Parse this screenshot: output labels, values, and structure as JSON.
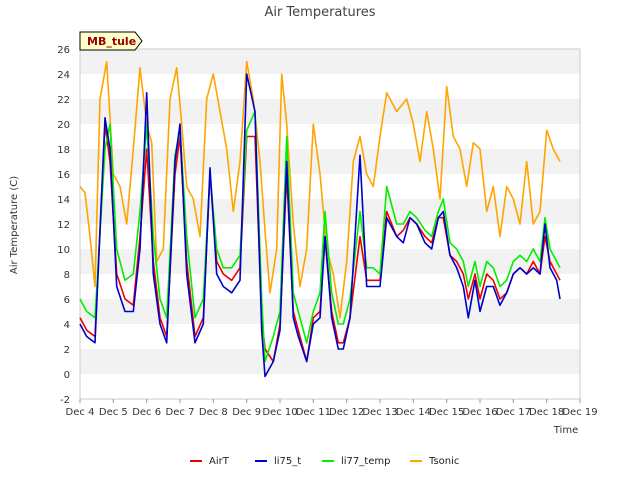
{
  "chart_data": {
    "type": "line",
    "title": "Air Temperatures",
    "xlabel": "Time",
    "ylabel": "Air Temperature (C)",
    "site_tag": "MB_tule",
    "xlim": [
      4,
      19
    ],
    "ylim": [
      -2,
      26
    ],
    "x_ticks": [
      {
        "value": 4,
        "label": "Dec 4"
      },
      {
        "value": 5,
        "label": "Dec 5"
      },
      {
        "value": 6,
        "label": "Dec 6"
      },
      {
        "value": 7,
        "label": "Dec 7"
      },
      {
        "value": 8,
        "label": "Dec 8"
      },
      {
        "value": 9,
        "label": "Dec 9"
      },
      {
        "value": 10,
        "label": "Dec 10"
      },
      {
        "value": 11,
        "label": "Dec 11"
      },
      {
        "value": 12,
        "label": "Dec 12"
      },
      {
        "value": 13,
        "label": "Dec 13"
      },
      {
        "value": 14,
        "label": "Dec 14"
      },
      {
        "value": 15,
        "label": "Dec 15"
      },
      {
        "value": 16,
        "label": "Dec 16"
      },
      {
        "value": 17,
        "label": "Dec 17"
      },
      {
        "value": 18,
        "label": "Dec 18"
      },
      {
        "value": 19,
        "label": "Dec 19"
      }
    ],
    "y_ticks": [
      -2,
      0,
      2,
      4,
      6,
      8,
      10,
      12,
      14,
      16,
      18,
      20,
      22,
      24,
      26
    ],
    "grid": "horizontal bands",
    "legend_position": "bottom",
    "x_unit": "day of December",
    "series": [
      {
        "name": "AirT",
        "color": "#ee0000",
        "x": [
          4.0,
          4.2,
          4.45,
          4.75,
          4.9,
          5.1,
          5.35,
          5.6,
          5.8,
          6.0,
          6.2,
          6.4,
          6.6,
          6.85,
          7.0,
          7.2,
          7.45,
          7.7,
          7.9,
          8.1,
          8.3,
          8.55,
          8.8,
          9.0,
          9.25,
          9.45,
          9.55,
          9.8,
          10.0,
          10.2,
          10.4,
          10.55,
          10.8,
          11.0,
          11.2,
          11.35,
          11.55,
          11.75,
          11.9,
          12.1,
          12.4,
          12.6,
          12.8,
          13.0,
          13.2,
          13.5,
          13.7,
          13.9,
          14.1,
          14.35,
          14.55,
          14.75,
          14.9,
          15.1,
          15.3,
          15.5,
          15.65,
          15.85,
          16.0,
          16.2,
          16.4,
          16.6,
          16.8,
          17.0,
          17.2,
          17.4,
          17.6,
          17.8,
          17.95,
          18.1,
          18.3,
          18.4
        ],
        "values": [
          4.5,
          3.5,
          3.0,
          20.0,
          17.0,
          8.0,
          6.0,
          5.5,
          11.0,
          18.0,
          9.0,
          4.5,
          3.0,
          16.0,
          19.0,
          9.0,
          3.0,
          4.5,
          16.0,
          9.0,
          8.0,
          7.5,
          8.5,
          19.0,
          19.0,
          4.5,
          2.0,
          1.0,
          4.0,
          16.0,
          5.0,
          3.5,
          1.0,
          4.5,
          5.0,
          11.0,
          5.0,
          2.5,
          2.5,
          4.5,
          11.0,
          7.5,
          7.5,
          7.5,
          13.0,
          11.0,
          11.5,
          12.5,
          12.0,
          11.0,
          10.5,
          12.5,
          12.5,
          9.5,
          9.0,
          8.0,
          6.0,
          8.0,
          6.0,
          8.0,
          7.5,
          6.0,
          6.5,
          8.0,
          8.5,
          8.0,
          9.0,
          8.0,
          11.0,
          9.0,
          8.0,
          7.5
        ]
      },
      {
        "name": "li75_t",
        "color": "#0000cc",
        "x": [
          4.0,
          4.2,
          4.45,
          4.75,
          4.9,
          5.1,
          5.35,
          5.6,
          5.8,
          6.0,
          6.2,
          6.4,
          6.6,
          6.85,
          7.0,
          7.2,
          7.45,
          7.7,
          7.9,
          8.1,
          8.3,
          8.55,
          8.8,
          9.0,
          9.25,
          9.45,
          9.55,
          9.8,
          10.0,
          10.2,
          10.4,
          10.55,
          10.8,
          11.0,
          11.2,
          11.35,
          11.55,
          11.75,
          11.9,
          12.1,
          12.4,
          12.6,
          12.8,
          13.0,
          13.2,
          13.5,
          13.7,
          13.9,
          14.1,
          14.35,
          14.55,
          14.75,
          14.9,
          15.1,
          15.3,
          15.5,
          15.65,
          15.85,
          16.0,
          16.2,
          16.4,
          16.6,
          16.8,
          17.0,
          17.2,
          17.4,
          17.6,
          17.8,
          17.95,
          18.1,
          18.3,
          18.4
        ],
        "values": [
          4.0,
          3.0,
          2.5,
          20.5,
          18.0,
          7.0,
          5.0,
          5.0,
          10.0,
          22.5,
          8.0,
          4.0,
          2.5,
          17.0,
          20.0,
          8.0,
          2.5,
          4.0,
          16.5,
          8.0,
          7.0,
          6.5,
          7.5,
          24.0,
          21.0,
          3.5,
          -0.2,
          1.0,
          3.5,
          17.0,
          4.5,
          3.0,
          1.0,
          4.0,
          4.5,
          11.0,
          4.5,
          2.0,
          2.0,
          4.5,
          17.5,
          7.0,
          7.0,
          7.0,
          12.5,
          11.0,
          10.5,
          12.5,
          12.0,
          10.5,
          10.0,
          12.5,
          13.0,
          9.5,
          8.5,
          7.0,
          4.5,
          7.5,
          5.0,
          7.0,
          7.0,
          5.5,
          6.5,
          8.0,
          8.5,
          8.0,
          8.5,
          8.0,
          12.0,
          8.5,
          7.5,
          6.0
        ]
      },
      {
        "name": "li77_temp",
        "color": "#00ee00",
        "x": [
          4.0,
          4.2,
          4.45,
          4.75,
          4.9,
          5.1,
          5.35,
          5.6,
          5.8,
          6.0,
          6.2,
          6.4,
          6.6,
          6.85,
          7.0,
          7.2,
          7.45,
          7.7,
          7.9,
          8.1,
          8.3,
          8.55,
          8.8,
          9.0,
          9.25,
          9.45,
          9.55,
          9.8,
          10.0,
          10.2,
          10.4,
          10.55,
          10.8,
          11.0,
          11.2,
          11.35,
          11.55,
          11.75,
          11.9,
          12.1,
          12.4,
          12.6,
          12.8,
          13.0,
          13.2,
          13.5,
          13.7,
          13.9,
          14.1,
          14.35,
          14.55,
          14.75,
          14.9,
          15.1,
          15.3,
          15.5,
          15.65,
          15.85,
          16.0,
          16.2,
          16.4,
          16.6,
          16.8,
          17.0,
          17.2,
          17.4,
          17.6,
          17.8,
          17.95,
          18.1,
          18.3,
          18.4
        ],
        "values": [
          6.0,
          5.0,
          4.5,
          18.0,
          20.0,
          10.0,
          7.5,
          8.0,
          13.0,
          20.0,
          11.0,
          6.0,
          4.5,
          17.5,
          19.5,
          11.0,
          4.5,
          6.0,
          16.0,
          10.0,
          8.5,
          8.5,
          9.5,
          19.5,
          21.0,
          6.0,
          1.0,
          3.0,
          5.0,
          19.0,
          6.5,
          5.0,
          2.5,
          5.0,
          6.5,
          13.0,
          6.5,
          4.0,
          4.0,
          6.0,
          13.0,
          8.5,
          8.5,
          8.0,
          15.0,
          12.0,
          12.0,
          13.0,
          12.5,
          11.5,
          11.0,
          13.0,
          14.0,
          10.5,
          10.0,
          9.0,
          7.0,
          9.0,
          7.0,
          9.0,
          8.5,
          7.0,
          7.5,
          9.0,
          9.5,
          9.0,
          10.0,
          9.0,
          12.5,
          10.0,
          9.0,
          8.5
        ]
      },
      {
        "name": "Tsonic",
        "color": "#ffa500",
        "x": [
          4.0,
          4.15,
          4.3,
          4.45,
          4.6,
          4.8,
          5.0,
          5.2,
          5.4,
          5.6,
          5.8,
          6.0,
          6.15,
          6.3,
          6.5,
          6.7,
          6.9,
          7.05,
          7.2,
          7.4,
          7.6,
          7.8,
          8.0,
          8.2,
          8.4,
          8.6,
          8.8,
          9.0,
          9.2,
          9.4,
          9.55,
          9.7,
          9.9,
          10.05,
          10.2,
          10.4,
          10.6,
          10.8,
          11.0,
          11.2,
          11.4,
          11.6,
          11.8,
          12.0,
          12.2,
          12.4,
          12.6,
          12.8,
          13.0,
          13.2,
          13.5,
          13.8,
          14.0,
          14.2,
          14.4,
          14.6,
          14.8,
          15.0,
          15.2,
          15.4,
          15.6,
          15.8,
          16.0,
          16.2,
          16.4,
          16.6,
          16.8,
          17.0,
          17.2,
          17.4,
          17.6,
          17.8,
          18.0,
          18.2,
          18.4
        ],
        "values": [
          15.0,
          14.5,
          11.0,
          7.0,
          22.0,
          25.0,
          16.0,
          15.0,
          12.0,
          18.0,
          24.5,
          20.0,
          18.5,
          9.0,
          10.0,
          22.0,
          24.5,
          20.0,
          15.0,
          14.0,
          11.0,
          22.0,
          24.0,
          21.0,
          18.0,
          13.0,
          17.0,
          25.0,
          22.0,
          17.0,
          11.5,
          6.5,
          10.0,
          24.0,
          20.0,
          12.0,
          7.0,
          10.0,
          20.0,
          16.0,
          10.0,
          8.0,
          4.5,
          9.0,
          17.0,
          19.0,
          16.0,
          15.0,
          19.0,
          22.5,
          21.0,
          22.0,
          20.0,
          17.0,
          21.0,
          18.0,
          14.0,
          23.0,
          19.0,
          18.0,
          15.0,
          18.5,
          18.0,
          13.0,
          15.0,
          11.0,
          15.0,
          14.0,
          12.0,
          17.0,
          12.0,
          13.0,
          19.5,
          18.0,
          17.0
        ]
      }
    ]
  }
}
